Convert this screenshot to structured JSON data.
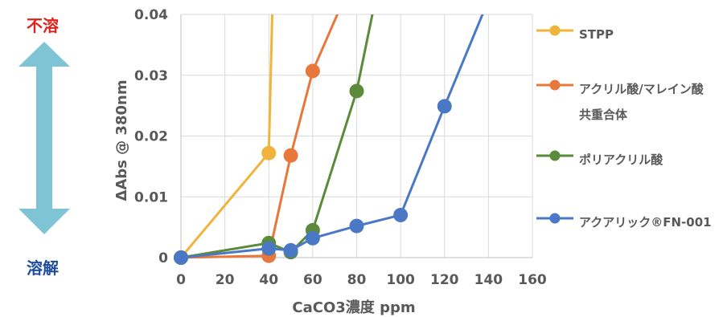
{
  "indicator": {
    "top_label": "不溶",
    "bottom_label": "溶解",
    "top_color": "#e0201b",
    "bottom_color": "#1f4e9c",
    "arrow_color": "#7fc4d4"
  },
  "chart_data": {
    "type": "line",
    "xlabel": "CaCO3濃度 ppm",
    "ylabel": "ΔAbs @ 380nm",
    "xlim": [
      0,
      160
    ],
    "ylim": [
      0,
      0.04
    ],
    "xticks": [
      0,
      20,
      40,
      60,
      80,
      100,
      120,
      140,
      160
    ],
    "yticks": [
      0,
      0.01,
      0.02,
      0.03,
      0.04
    ],
    "ytick_labels": [
      "0",
      "0.01",
      "0.02",
      "0.03",
      "0.04"
    ],
    "grid": true,
    "legend_position": "right",
    "series": [
      {
        "name": "STPP",
        "color": "#f0b43c",
        "points": [
          [
            0,
            0
          ],
          [
            40,
            0.0172
          ],
          [
            42,
            0.0465
          ]
        ]
      },
      {
        "name": "アクリル酸/マレイン酸共重合体",
        "legend_lines": [
          "アクリル酸/マレイン酸",
          "共重合体"
        ],
        "color": "#e8773b",
        "points": [
          [
            0,
            0
          ],
          [
            40,
            0.0003
          ],
          [
            50,
            0.0168
          ],
          [
            60,
            0.0307
          ],
          [
            73,
            0.0415
          ]
        ]
      },
      {
        "name": "ポリアクリル酸",
        "color": "#5a8a3a",
        "points": [
          [
            0,
            0
          ],
          [
            40,
            0.0024
          ],
          [
            50,
            0.0009
          ],
          [
            60,
            0.0045
          ],
          [
            80,
            0.0274
          ],
          [
            88,
            0.0415
          ]
        ]
      },
      {
        "name": "アクアリック®FN-001",
        "color": "#4a78c4",
        "points": [
          [
            0,
            0
          ],
          [
            40,
            0.0015
          ],
          [
            50,
            0.0012
          ],
          [
            60,
            0.0032
          ],
          [
            80,
            0.0052
          ],
          [
            100,
            0.007
          ],
          [
            120,
            0.0249
          ],
          [
            139,
            0.0415
          ]
        ]
      }
    ]
  }
}
